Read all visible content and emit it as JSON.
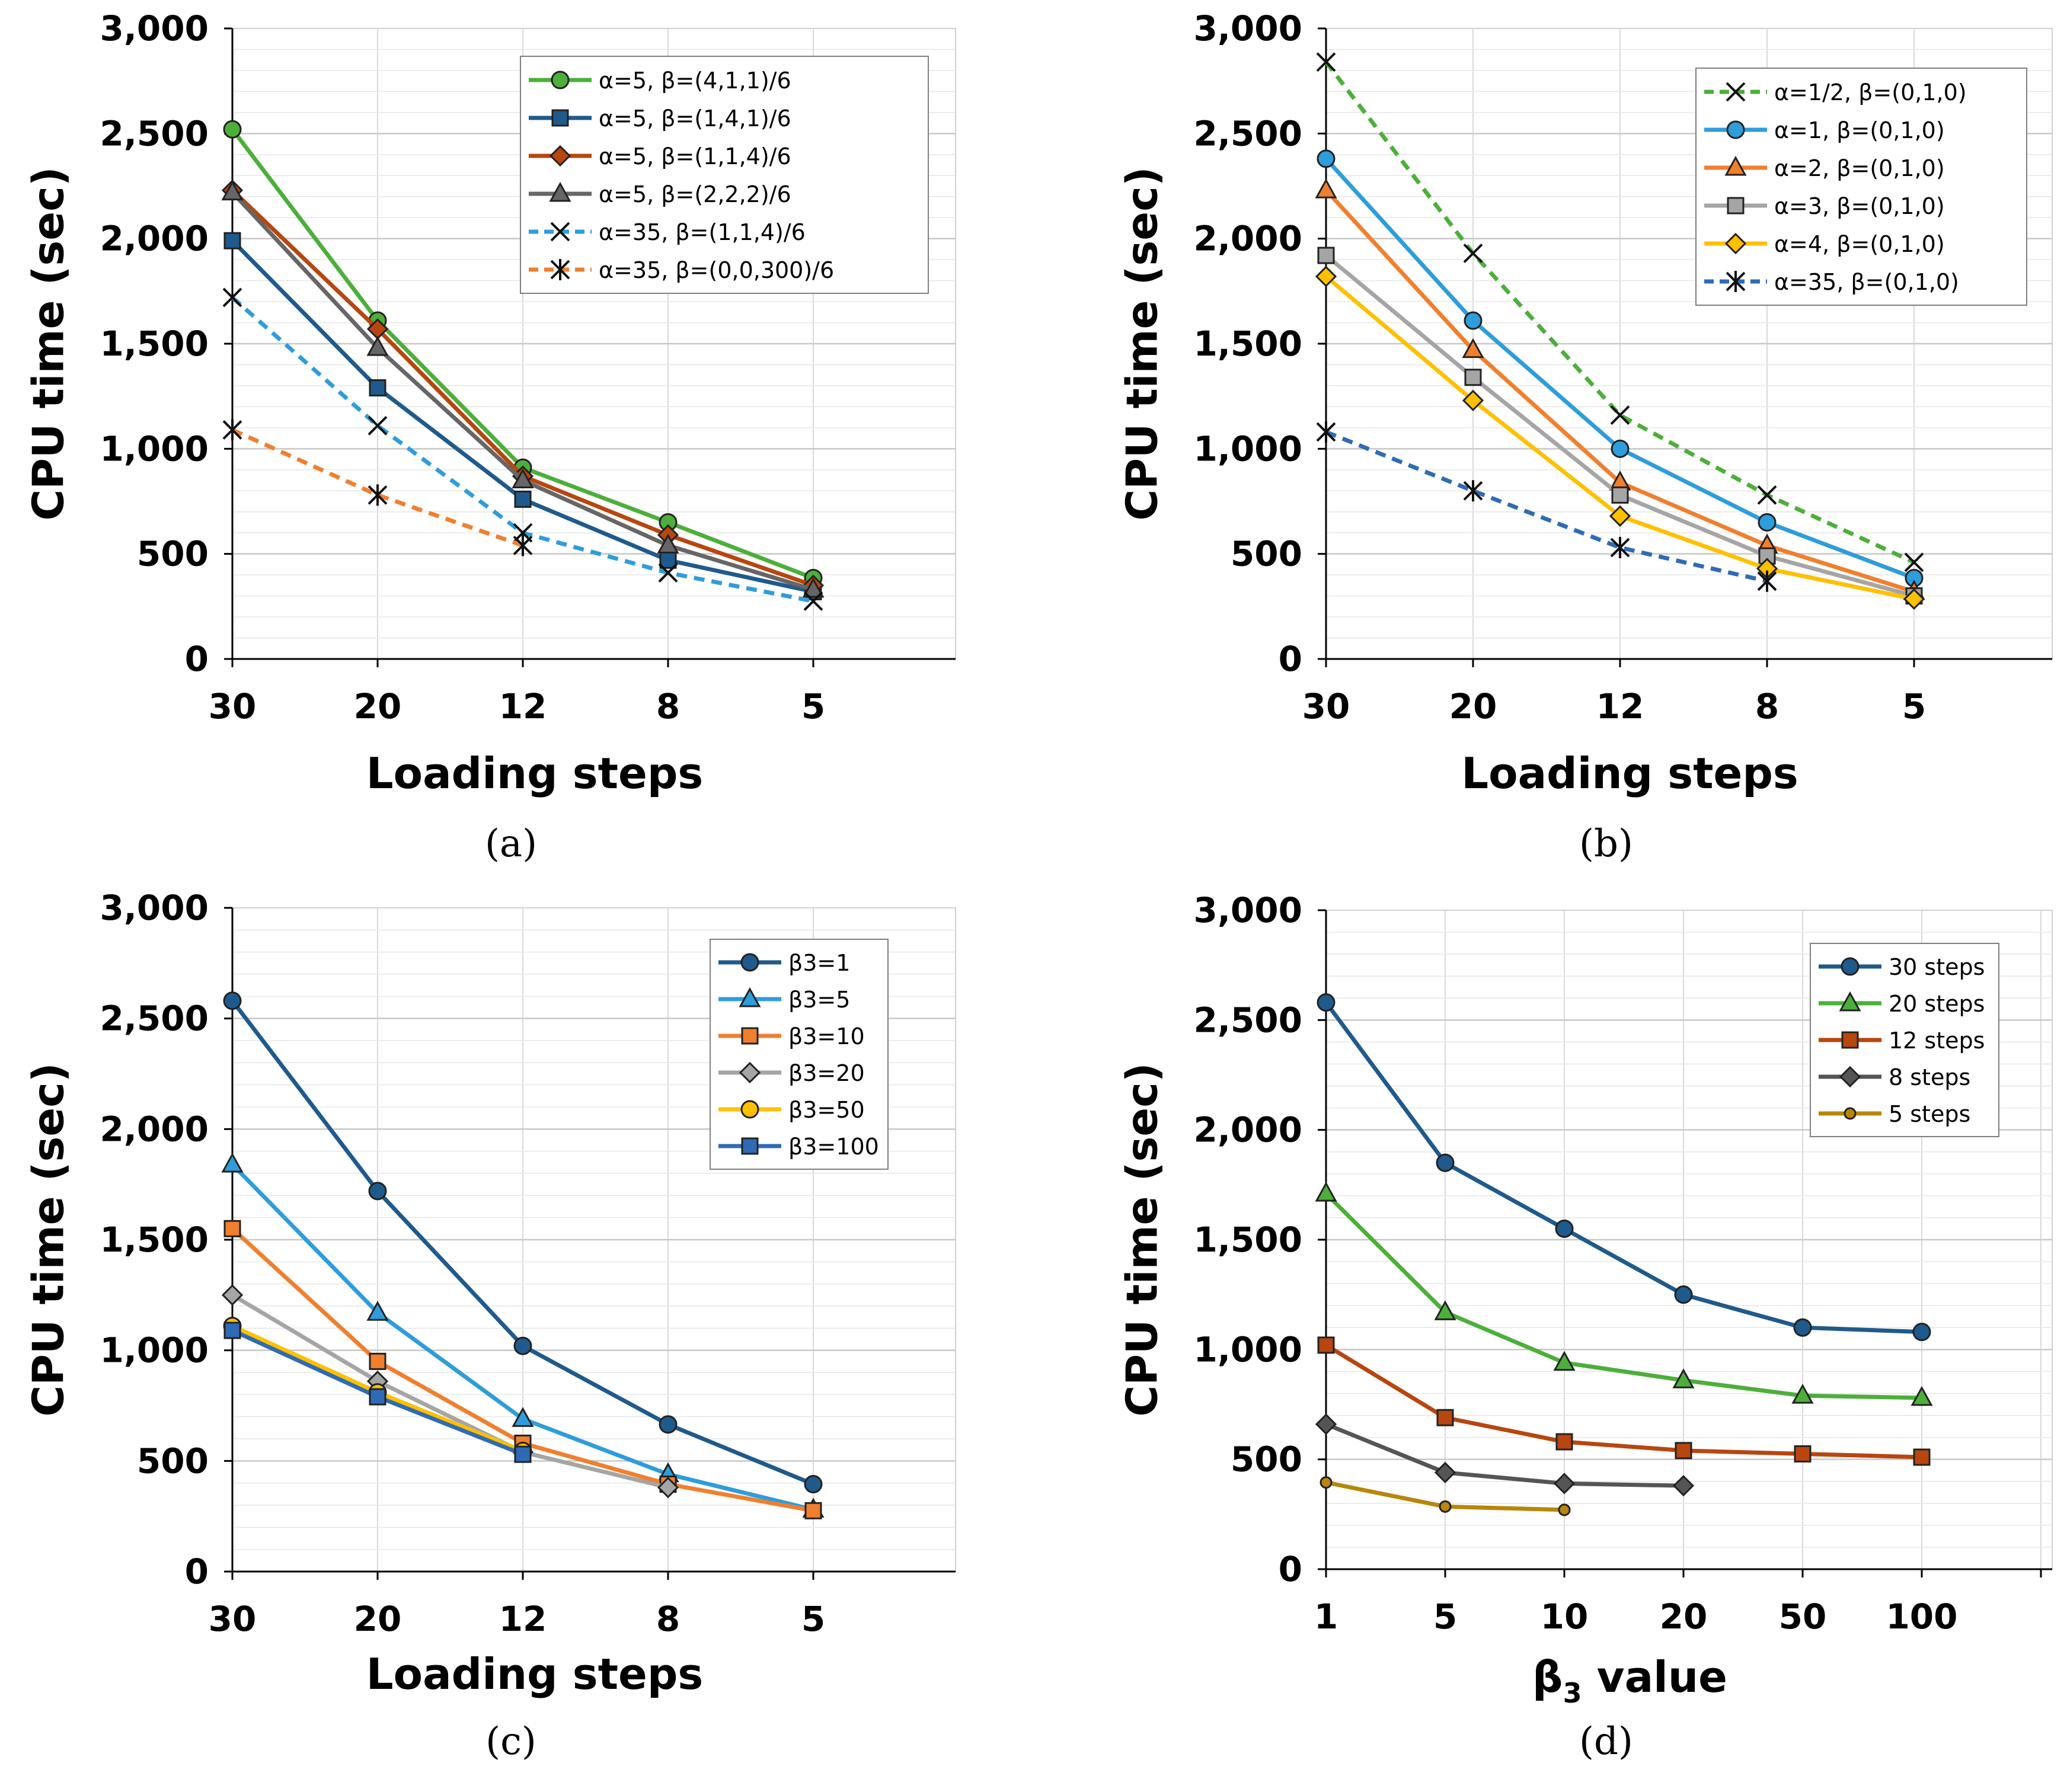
{
  "chart_data": [
    {
      "type": "line",
      "panel": "a",
      "caption": "(a)",
      "xlabel": "Loading steps",
      "ylabel": "CPU time (sec)",
      "categories": [
        "30",
        "20",
        "12",
        "8",
        "5"
      ],
      "ylim": [
        0,
        3000
      ],
      "yticks": [
        0,
        500,
        1000,
        1500,
        2000,
        2500,
        3000
      ],
      "ytick_labels": [
        "0",
        "500",
        "1,000",
        "1,500",
        "2,000",
        "2,500",
        "3,000"
      ],
      "legend_position": "top-right",
      "series": [
        {
          "name": "α=5, β=(4,1,1)/6",
          "color": "#4CAF3A",
          "marker": "circle",
          "dash": false,
          "values": [
            2520,
            1610,
            910,
            650,
            385
          ]
        },
        {
          "name": "α=5, β=(1,4,1)/6",
          "color": "#1F5A8C",
          "marker": "square",
          "dash": false,
          "values": [
            1990,
            1290,
            760,
            470,
            320
          ]
        },
        {
          "name": "α=5, β=(1,1,4)/6",
          "color": "#B8460F",
          "marker": "diamond",
          "dash": false,
          "values": [
            2230,
            1570,
            870,
            590,
            350
          ]
        },
        {
          "name": "α=5, β=(2,2,2)/6",
          "color": "#666666",
          "marker": "triangle",
          "dash": false,
          "values": [
            2220,
            1480,
            850,
            540,
            330
          ]
        },
        {
          "name": "α=35, β=(1,1,4)/6",
          "color": "#2E9DDB",
          "marker": "x",
          "dash": true,
          "values": [
            1720,
            1110,
            600,
            410,
            275
          ]
        },
        {
          "name": "α=35, β=(0,0,300)/6",
          "color": "#F07F2E",
          "marker": "star",
          "dash": true,
          "values": [
            1090,
            780,
            540,
            null,
            null
          ]
        }
      ]
    },
    {
      "type": "line",
      "panel": "b",
      "caption": "(b)",
      "xlabel": "Loading steps",
      "ylabel": "CPU time (sec)",
      "categories": [
        "30",
        "20",
        "12",
        "8",
        "5"
      ],
      "ylim": [
        0,
        3000
      ],
      "yticks": [
        0,
        500,
        1000,
        1500,
        2000,
        2500,
        3000
      ],
      "ytick_labels": [
        "0",
        "500",
        "1,000",
        "1,500",
        "2,000",
        "2,500",
        "3,000"
      ],
      "legend_position": "top-right",
      "series": [
        {
          "name": "α=1/2, β=(0,1,0)",
          "color": "#4CAF3A",
          "marker": "x",
          "dash": true,
          "values": [
            2840,
            1930,
            1160,
            780,
            460
          ]
        },
        {
          "name": "α=1, β=(0,1,0)",
          "color": "#2E9DDB",
          "marker": "circle",
          "dash": false,
          "values": [
            2380,
            1610,
            1000,
            650,
            385
          ]
        },
        {
          "name": "α=2, β=(0,1,0)",
          "color": "#F07F2E",
          "marker": "triangle",
          "dash": false,
          "values": [
            2230,
            1470,
            840,
            540,
            320
          ]
        },
        {
          "name": "α=3, β=(0,1,0)",
          "color": "#A5A5A5",
          "marker": "square",
          "dash": false,
          "values": [
            1920,
            1340,
            780,
            490,
            300
          ]
        },
        {
          "name": "α=4, β=(0,1,0)",
          "color": "#FFC000",
          "marker": "diamond",
          "dash": false,
          "values": [
            1820,
            1230,
            680,
            430,
            285
          ]
        },
        {
          "name": "α=35, β=(0,1,0)",
          "color": "#2F6BB5",
          "marker": "star",
          "dash": true,
          "values": [
            1080,
            800,
            530,
            370,
            null
          ]
        }
      ]
    },
    {
      "type": "line",
      "panel": "c",
      "caption": "(c)",
      "xlabel": "Loading steps",
      "ylabel": "CPU time (sec)",
      "categories": [
        "30",
        "20",
        "12",
        "8",
        "5"
      ],
      "ylim": [
        0,
        3000
      ],
      "yticks": [
        0,
        500,
        1000,
        1500,
        2000,
        2500,
        3000
      ],
      "ytick_labels": [
        "0",
        "500",
        "1,000",
        "1,500",
        "2,000",
        "2,500",
        "3,000"
      ],
      "legend_position": "top-right",
      "series": [
        {
          "name": "β3=1",
          "color": "#1F5A8C",
          "marker": "circle",
          "dash": false,
          "values": [
            2580,
            1720,
            1020,
            665,
            395
          ]
        },
        {
          "name": "β3=5",
          "color": "#2E9DDB",
          "marker": "triangle",
          "dash": false,
          "values": [
            1840,
            1170,
            690,
            440,
            280
          ]
        },
        {
          "name": "β3=10",
          "color": "#F07F2E",
          "marker": "square",
          "dash": false,
          "values": [
            1550,
            950,
            580,
            395,
            275
          ]
        },
        {
          "name": "β3=20",
          "color": "#A5A5A5",
          "marker": "diamond",
          "dash": false,
          "values": [
            1250,
            860,
            540,
            380,
            null
          ]
        },
        {
          "name": "β3=50",
          "color": "#FFC000",
          "marker": "circle",
          "dash": false,
          "values": [
            1110,
            810,
            545,
            null,
            null
          ]
        },
        {
          "name": "β3=100",
          "color": "#2F6BB5",
          "marker": "square",
          "dash": false,
          "values": [
            1090,
            790,
            530,
            null,
            null
          ]
        }
      ]
    },
    {
      "type": "line",
      "panel": "d",
      "caption": "(d)",
      "xlabel": "β",
      "xlabel_sub": "3",
      "xlabel_tail": " value",
      "ylabel": "CPU time (sec)",
      "categories": [
        "1",
        "5",
        "10",
        "20",
        "50",
        "100"
      ],
      "ylim": [
        0,
        3000
      ],
      "yticks": [
        0,
        500,
        1000,
        1500,
        2000,
        2500,
        3000
      ],
      "ytick_labels": [
        "0",
        "500",
        "1,000",
        "1,500",
        "2,000",
        "2,500",
        "3,000"
      ],
      "legend_position": "top-right",
      "series": [
        {
          "name": "30 steps",
          "color": "#1F5A8C",
          "marker": "circle",
          "dash": false,
          "values": [
            2580,
            1850,
            1550,
            1250,
            1100,
            1080
          ]
        },
        {
          "name": "20 steps",
          "color": "#4CAF3A",
          "marker": "triangle",
          "dash": false,
          "values": [
            1710,
            1170,
            940,
            860,
            790,
            780
          ]
        },
        {
          "name": "12 steps",
          "color": "#B8460F",
          "marker": "square",
          "dash": false,
          "values": [
            1020,
            690,
            580,
            540,
            525,
            510
          ]
        },
        {
          "name": "8 steps",
          "color": "#555555",
          "marker": "diamond",
          "dash": false,
          "values": [
            660,
            440,
            390,
            380,
            null,
            null
          ]
        },
        {
          "name": "5 steps",
          "color": "#B8860B",
          "marker": "smallcircle",
          "dash": false,
          "values": [
            395,
            285,
            270,
            null,
            null,
            null
          ]
        }
      ]
    }
  ]
}
